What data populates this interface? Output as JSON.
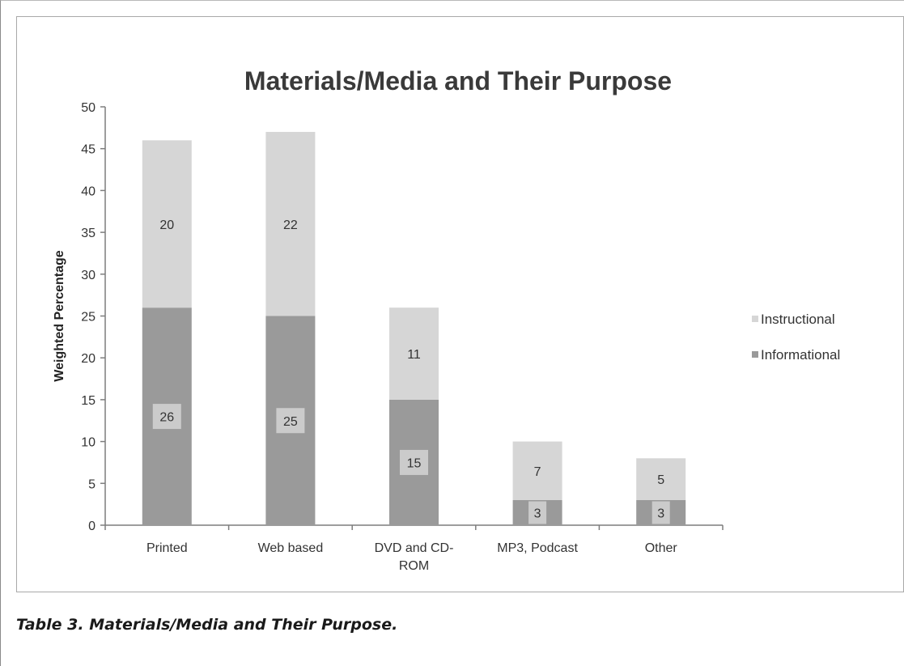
{
  "caption": "Table 3. Materials/Media and Their Purpose.",
  "colors": {
    "instructional": "#d6d6d6",
    "informational": "#9a9a9a",
    "label_bg": "#cbcbcb",
    "axis": "#7d7d7d",
    "text": "#333333"
  },
  "chart_data": {
    "type": "bar",
    "stacked": true,
    "title": "Materials/Media and Their Purpose",
    "xlabel": "",
    "ylabel": "Weighted Percentage",
    "ylim": [
      0,
      50
    ],
    "yticks": [
      0,
      5,
      10,
      15,
      20,
      25,
      30,
      35,
      40,
      45,
      50
    ],
    "grid": false,
    "legend_position": "right",
    "categories": [
      "Printed",
      "Web based",
      "DVD and CD-ROM",
      "MP3, Podcast",
      "Other"
    ],
    "category_label_lines": [
      [
        "Printed"
      ],
      [
        "Web based"
      ],
      [
        "DVD and CD-",
        "ROM"
      ],
      [
        "MP3, Podcast"
      ],
      [
        "Other"
      ]
    ],
    "series": [
      {
        "name": "Informational",
        "values": [
          26,
          25,
          15,
          3,
          3
        ],
        "color": "#9a9a9a"
      },
      {
        "name": "Instructional",
        "values": [
          20,
          22,
          11,
          7,
          5
        ],
        "color": "#d6d6d6"
      }
    ],
    "legend_order": [
      "Instructional",
      "Informational"
    ],
    "data_labels": true
  }
}
